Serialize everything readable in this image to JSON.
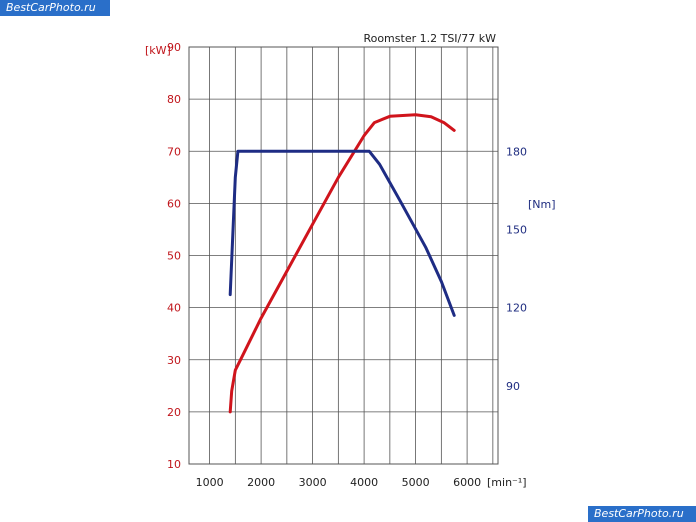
{
  "watermark": {
    "top_text": "BestCarPhoto.ru",
    "bottom_text": "BestCarPhoto.ru",
    "color": "#2a6fc9"
  },
  "chart_data": {
    "type": "line",
    "title": "Roomster 1.2 TSI/77 kW",
    "xlabel": "[min⁻¹]",
    "xlim": [
      600,
      6600
    ],
    "xticks": [
      1000,
      2000,
      3000,
      4000,
      5000,
      6000
    ],
    "y_left": {
      "label": "[kW]",
      "lim": [
        10,
        90
      ],
      "ticks": [
        10,
        20,
        30,
        40,
        50,
        60,
        70,
        80,
        90
      ],
      "color": "#c0151b"
    },
    "y_right": {
      "label": "[Nm]",
      "lim": [
        60,
        220
      ],
      "ticks": [
        90,
        120,
        150,
        180
      ],
      "color": "#1f2d80"
    },
    "grid": true,
    "series": [
      {
        "axis": "left",
        "color": "#d0141c",
        "x": [
          1400,
          1430,
          1500,
          1600,
          2000,
          2500,
          3000,
          3500,
          4000,
          4200,
          4500,
          5000,
          5300,
          5550,
          5750
        ],
        "y": [
          20,
          24,
          28,
          30,
          38,
          47,
          56,
          65,
          73,
          75.5,
          76.7,
          77,
          76.6,
          75.5,
          74
        ]
      },
      {
        "axis": "right",
        "color": "#1e2c84",
        "x": [
          1400,
          1500,
          1550,
          2000,
          3000,
          4000,
          4100,
          4300,
          4700,
          5200,
          5500,
          5750
        ],
        "y": [
          125,
          170,
          180,
          180,
          180,
          180,
          180,
          175,
          161,
          143,
          130,
          117
        ]
      }
    ]
  }
}
